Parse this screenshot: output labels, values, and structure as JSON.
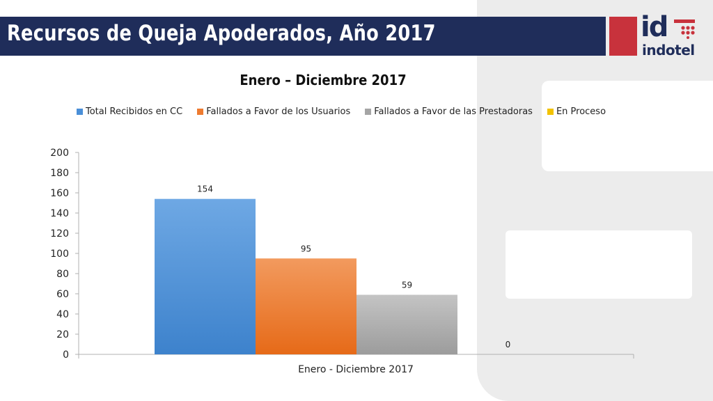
{
  "slide": {
    "title": "Recursos de Queja Apoderados, Año 2017"
  },
  "logo": {
    "mark": "id",
    "text": "indotel",
    "colors": {
      "red": "#c8323c",
      "navy": "#1f2d5a"
    }
  },
  "chart_data": {
    "type": "bar",
    "title": "Enero – Diciembre 2017",
    "categories": [
      "Enero - Diciembre 2017"
    ],
    "series": [
      {
        "name": "Total Recibidos en CC",
        "values": [
          154
        ],
        "color": "#4a8fd8"
      },
      {
        "name": "Fallados a Favor de los Usuarios",
        "values": [
          95
        ],
        "color": "#ee7b30"
      },
      {
        "name": "Fallados a Favor de las Prestadoras",
        "values": [
          59
        ],
        "color": "#a5a5a5"
      },
      {
        "name": "En Proceso",
        "values": [
          0
        ],
        "color": "#f2c200"
      }
    ],
    "ylim": [
      0,
      200
    ],
    "yticks": [
      0,
      20,
      40,
      60,
      80,
      100,
      120,
      140,
      160,
      180,
      200
    ],
    "xlabel": "",
    "ylabel": "",
    "grid": false,
    "legend": "top"
  }
}
